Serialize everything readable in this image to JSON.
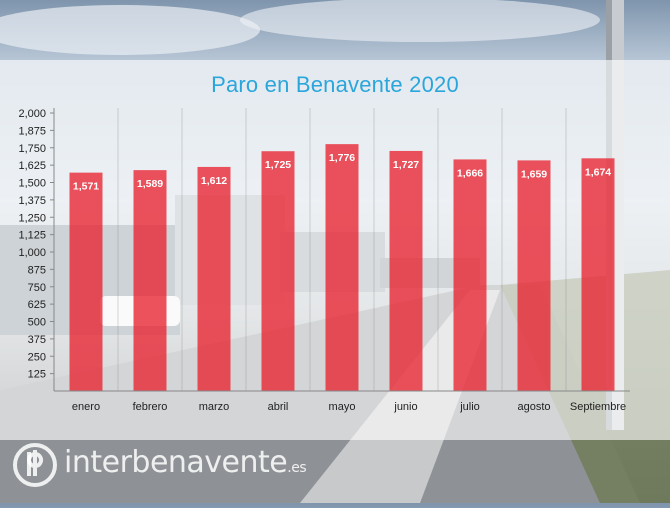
{
  "chart_data": {
    "type": "bar",
    "title": "Paro en Benavente 2020",
    "categories": [
      "enero",
      "febrero",
      "marzo",
      "abril",
      "mayo",
      "junio",
      "julio",
      "agosto",
      "Septiembre"
    ],
    "values": [
      1571,
      1589,
      1612,
      1725,
      1776,
      1727,
      1666,
      1659,
      1674
    ],
    "value_labels": [
      "1,571",
      "1,589",
      "1,612",
      "1,725",
      "1,776",
      "1,727",
      "1,666",
      "1,659",
      "1,674"
    ],
    "yticks": [
      125,
      250,
      375,
      500,
      625,
      750,
      875,
      1000,
      1125,
      1250,
      1375,
      1500,
      1625,
      1750,
      1875,
      2000
    ],
    "ytick_labels": [
      "125",
      "250",
      "375",
      "500",
      "625",
      "750",
      "875",
      "1,000",
      "1,125",
      "1,250",
      "1,375",
      "1,500",
      "1,625",
      "1,750",
      "1,875",
      "2,000"
    ],
    "ylim": [
      0,
      2000
    ],
    "xlabel": "",
    "ylabel": "",
    "grid": true,
    "bar_color": "#e8232f",
    "title_color": "#2aa6db"
  },
  "watermark": {
    "logo_icon": "ib-circle-logo",
    "brand": "interbenavente",
    "suffix": ".es"
  }
}
